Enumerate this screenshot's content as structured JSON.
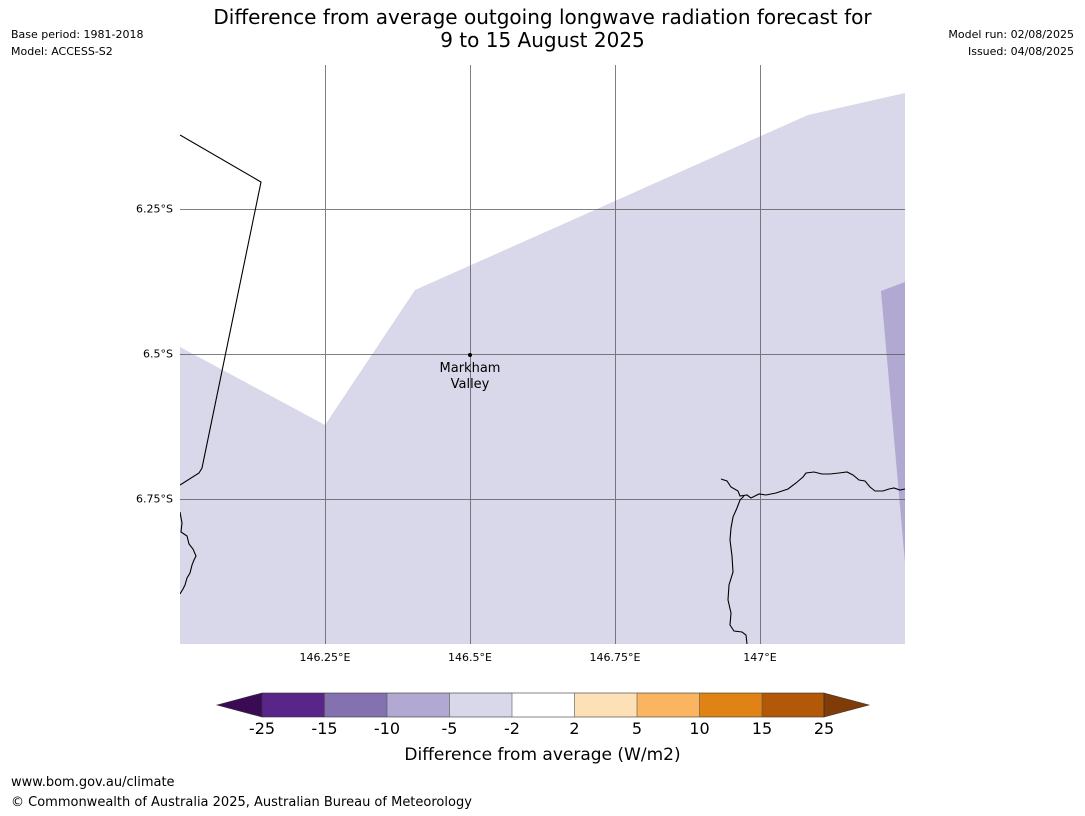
{
  "title": {
    "line1": "Difference from average outgoing longwave radiation forecast for",
    "line2": "9 to 15 August 2025"
  },
  "meta": {
    "base_period": "Base period: 1981-2018",
    "model": "Model: ACCESS-S2",
    "model_run": "Model run: 02/08/2025",
    "issued": "Issued: 04/08/2025"
  },
  "map": {
    "lat_labels": [
      "6.25°S",
      "6.5°S",
      "6.75°S"
    ],
    "lon_labels": [
      "146.25°E",
      "146.5°E",
      "146.75°E",
      "147°E"
    ],
    "location": {
      "name_line1": "Markham",
      "name_line2": "Valley"
    },
    "colors": {
      "minus2_to_minus5": "#d8d8ea",
      "minus5_to_minus10": "#b1a9d2",
      "coast": "#000000",
      "grid": "#555555"
    }
  },
  "colorbar": {
    "title": "Difference from average (W/m2)",
    "ticks": [
      "-25",
      "-15",
      "-10",
      "-5",
      "-2",
      "2",
      "5",
      "10",
      "15",
      "25"
    ],
    "colors": [
      "#3b0a55",
      "#5a2588",
      "#8472b0",
      "#b1a9d2",
      "#d8d8ea",
      "#ffffff",
      "#fde0b6",
      "#fbb560",
      "#e08214",
      "#b35806",
      "#7f3b08"
    ]
  },
  "footer": {
    "url": "www.bom.gov.au/climate",
    "copyright": "© Commonwealth of Australia 2025, Australian Bureau of Meteorology"
  }
}
